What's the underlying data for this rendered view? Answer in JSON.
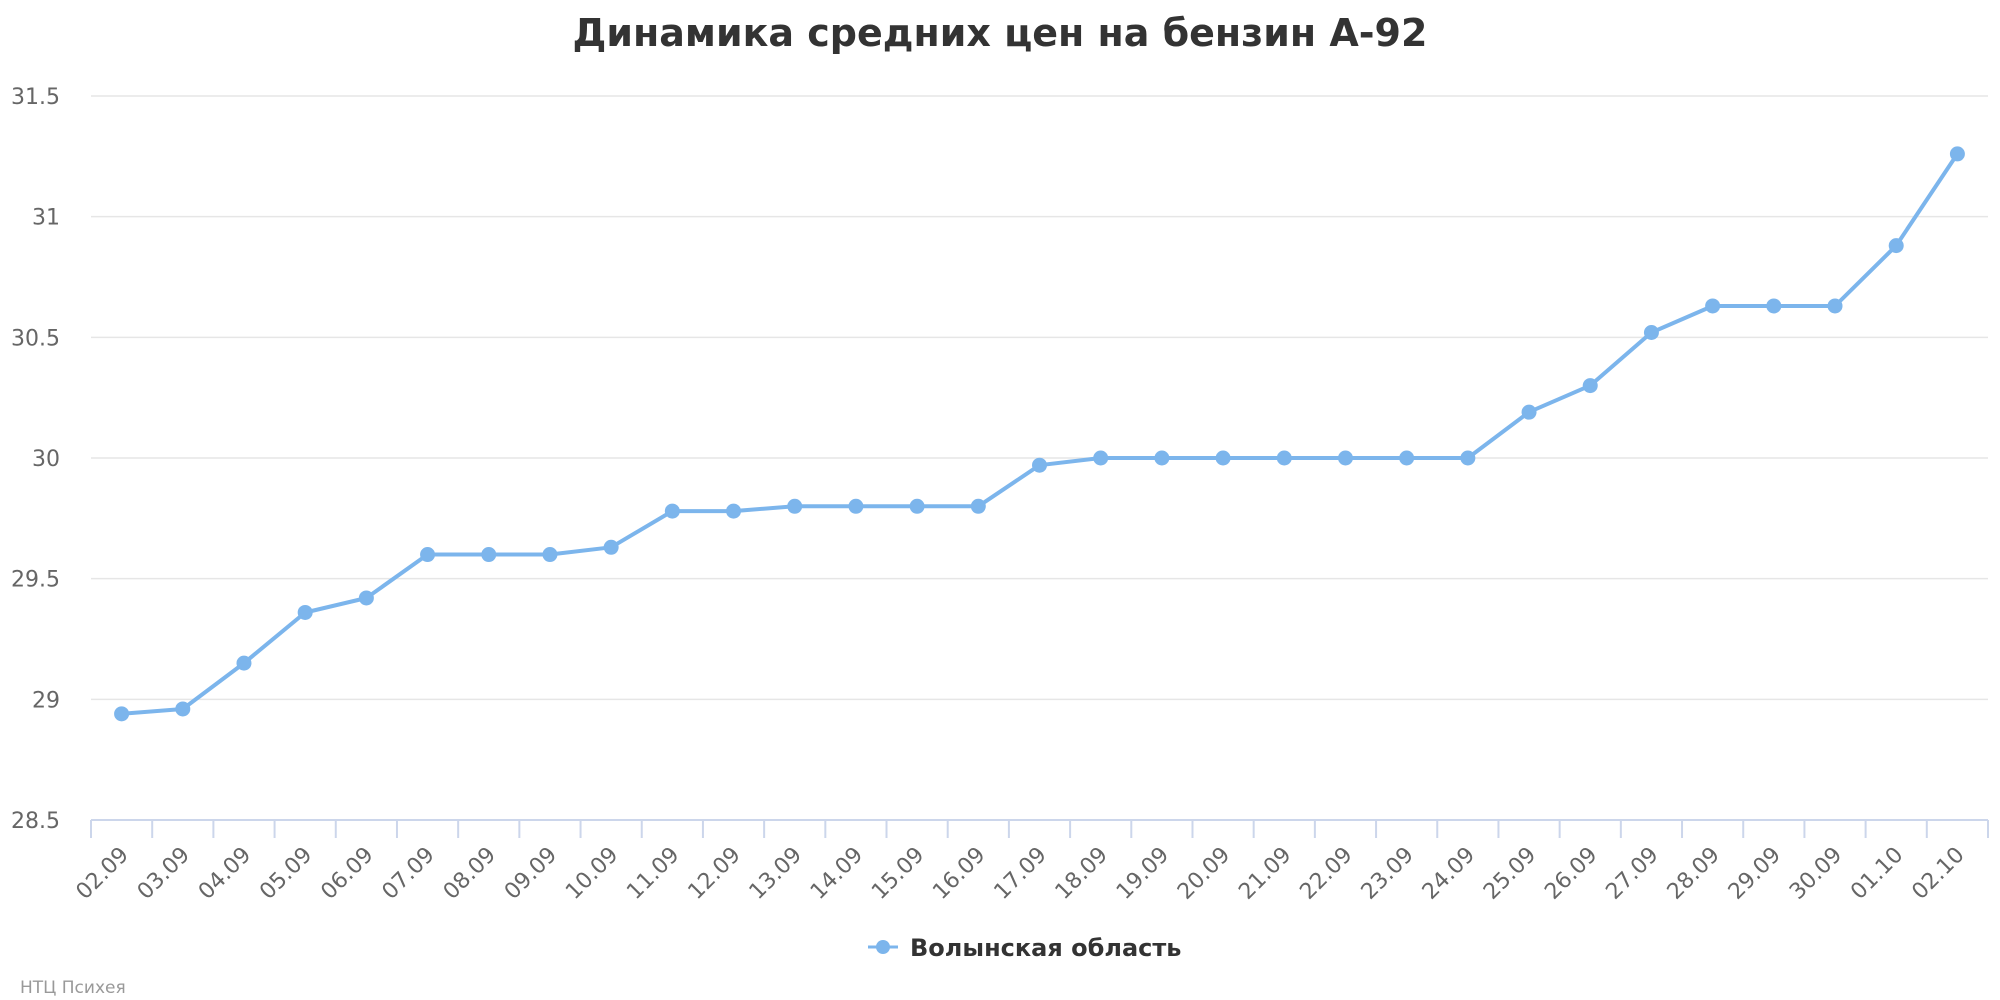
{
  "chart_data": {
    "type": "line",
    "title": "Динамика средних цен на бензин А-92",
    "xlabel": "",
    "ylabel": "",
    "categories": [
      "02.09",
      "03.09",
      "04.09",
      "05.09",
      "06.09",
      "07.09",
      "08.09",
      "09.09",
      "10.09",
      "11.09",
      "12.09",
      "13.09",
      "14.09",
      "15.09",
      "16.09",
      "17.09",
      "18.09",
      "19.09",
      "20.09",
      "21.09",
      "22.09",
      "23.09",
      "24.09",
      "25.09",
      "26.09",
      "27.09",
      "28.09",
      "29.09",
      "30.09",
      "01.10",
      "02.10"
    ],
    "series": [
      {
        "name": "Волынская область",
        "color": "#7cb5ec",
        "values": [
          28.94,
          28.96,
          29.15,
          29.36,
          29.42,
          29.6,
          29.6,
          29.6,
          29.63,
          29.78,
          29.78,
          29.8,
          29.8,
          29.8,
          29.8,
          29.97,
          30.0,
          30.0,
          30.0,
          30.0,
          30.0,
          30.0,
          30.0,
          30.19,
          30.3,
          30.52,
          30.63,
          30.63,
          30.63,
          30.88,
          31.26
        ]
      }
    ],
    "ylim": [
      28.5,
      31.5
    ],
    "yticks": [
      "28.5",
      "29",
      "29.5",
      "30",
      "30.5",
      "31",
      "31.5"
    ],
    "grid": true,
    "legend_position": "bottom-center"
  },
  "credit": "НТЦ Психея"
}
